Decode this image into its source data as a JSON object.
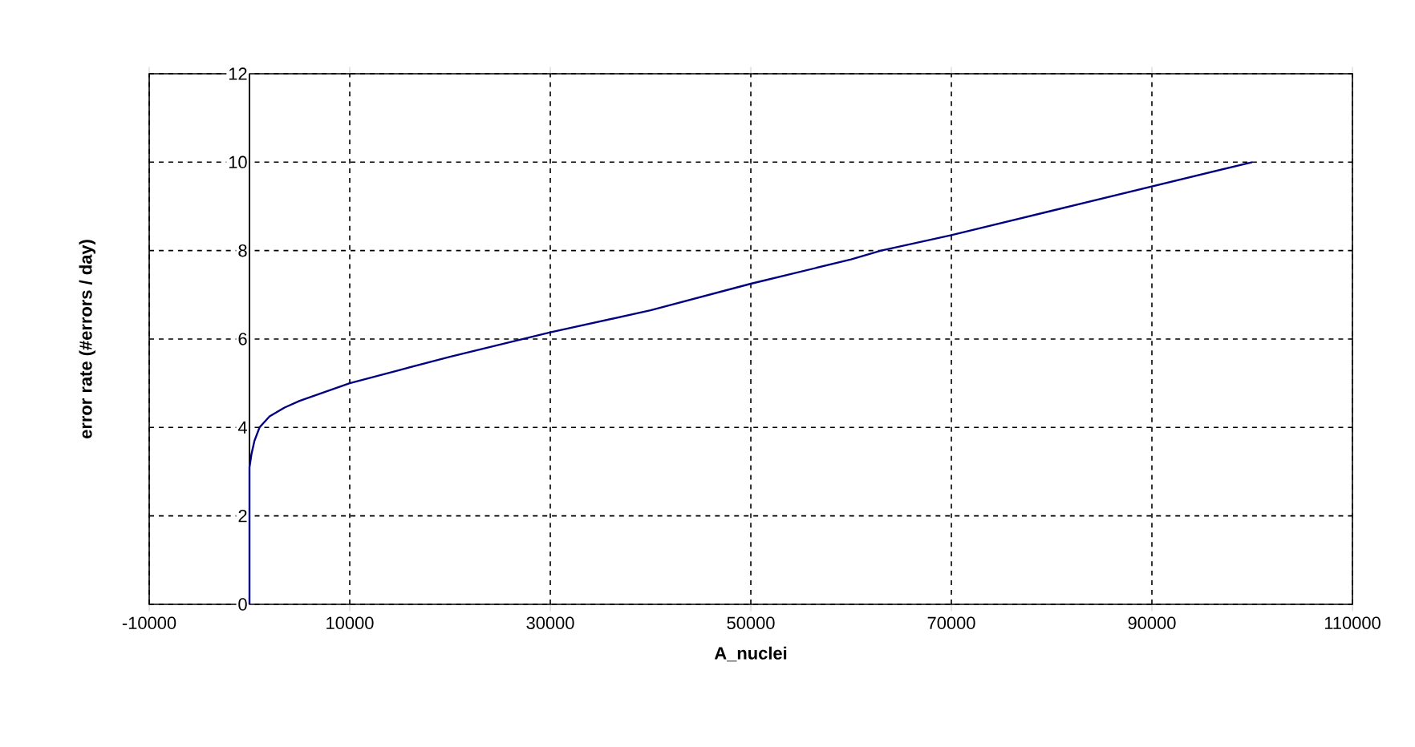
{
  "chart_data": {
    "type": "line",
    "xlabel": "A_nuclei",
    "ylabel": "error rate  (#errors / day)",
    "series": [
      {
        "color": "#000080",
        "x": [
          0,
          0,
          200,
          500,
          1000,
          2000,
          3500,
          5000,
          7500,
          10000,
          15000,
          20000,
          30000,
          40000,
          50000,
          60000,
          63000,
          70000,
          80000,
          90000,
          100000
        ],
        "values": [
          0,
          3.1,
          3.4,
          3.7,
          4.0,
          4.25,
          4.45,
          4.6,
          4.8,
          5.0,
          5.3,
          5.6,
          6.15,
          6.65,
          7.25,
          7.8,
          8.0,
          8.35,
          8.9,
          9.45,
          10.0
        ]
      }
    ],
    "xlim": [
      -10000,
      110000
    ],
    "ylim": [
      0,
      12
    ],
    "xticks": [
      -10000,
      10000,
      30000,
      50000,
      70000,
      90000,
      110000
    ],
    "yticks": [
      0,
      2,
      4,
      6,
      8,
      10,
      12
    ],
    "grid": true,
    "marker": "none",
    "line_style": "solid"
  }
}
